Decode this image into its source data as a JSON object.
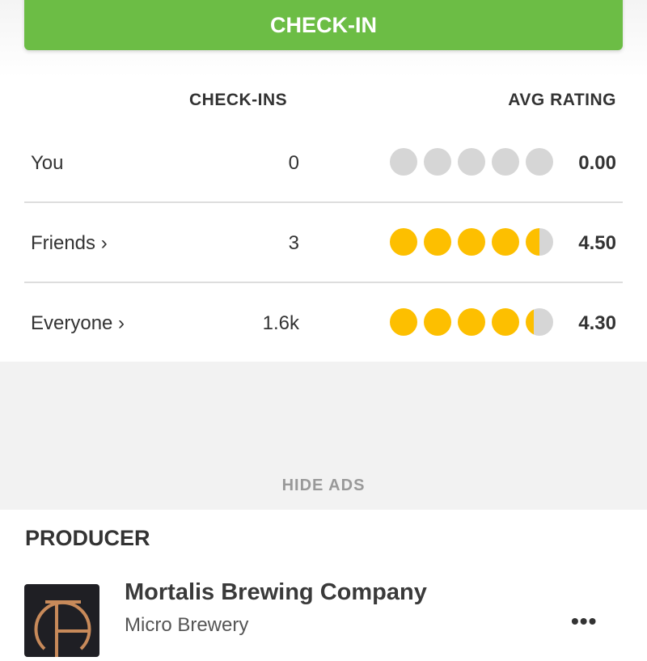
{
  "checkin_button": "CHECK-IN",
  "headers": {
    "checkins": "CHECK-INS",
    "avg_rating": "AVG RATING"
  },
  "rows": [
    {
      "label": "You",
      "count": "0",
      "rating": 0,
      "rating_text": "0.00"
    },
    {
      "label": "Friends ›",
      "count": "3",
      "rating": 4.5,
      "rating_text": "4.50"
    },
    {
      "label": "Everyone ›",
      "count": "1.6k",
      "rating": 4.3,
      "rating_text": "4.30"
    }
  ],
  "hide_ads": "HIDE ADS",
  "producer": {
    "section_title": "PRODUCER",
    "name": "Mortalis Brewing Company",
    "type": "Micro Brewery",
    "more": "•••"
  },
  "colors": {
    "accent": "#6cbd45",
    "cap_filled": "#fdbf00",
    "cap_empty": "#d6d6d6"
  }
}
